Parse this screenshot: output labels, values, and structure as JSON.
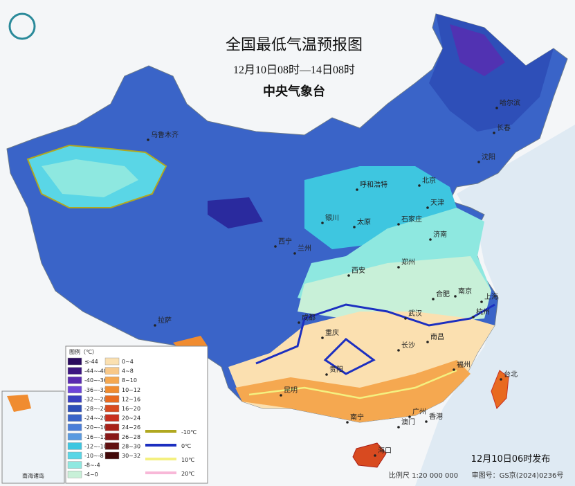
{
  "header": {
    "title": "全国最低气温预报图",
    "subtitle": "12月10日08时—14日08时",
    "agency": "中央气象台"
  },
  "cities": [
    "乌鲁木齐",
    "哈尔滨",
    "长春",
    "沈阳",
    "呼和浩特",
    "北京",
    "天津",
    "银川",
    "太原",
    "石家庄",
    "西宁",
    "兰州",
    "济南",
    "西安",
    "郑州",
    "合肥",
    "南京",
    "上海",
    "拉萨",
    "成都",
    "武汉",
    "杭州",
    "重庆",
    "南昌",
    "长沙",
    "贵阳",
    "福州",
    "台北",
    "昆明",
    "广州",
    "南宁",
    "澳门",
    "香港",
    "海口"
  ],
  "legend": {
    "title": "图例（℃）",
    "items": [
      {
        "label": "≤-44",
        "color": "#2a0a5e"
      },
      {
        "label": "-44~-40",
        "color": "#3d1680"
      },
      {
        "label": "-40~-36",
        "color": "#5a2ab0"
      },
      {
        "label": "-36~-32",
        "color": "#6e44d8"
      },
      {
        "label": "-32~-28",
        "color": "#3a3fc0"
      },
      {
        "label": "-28~-24",
        "color": "#2e4fb8"
      },
      {
        "label": "-24~-20",
        "color": "#3a64c8"
      },
      {
        "label": "-20~-16",
        "color": "#4a7ed8"
      },
      {
        "label": "-16~-12",
        "color": "#5a9ae0"
      },
      {
        "label": "-12~-10",
        "color": "#3ec6e0"
      },
      {
        "label": "-10~-8",
        "color": "#5ad6e6"
      },
      {
        "label": "-8~-4",
        "color": "#8ee8e0"
      },
      {
        "label": "-4~0",
        "color": "#c8f0d8"
      },
      {
        "label": "0~4",
        "color": "#fbe0b0"
      },
      {
        "label": "4~8",
        "color": "#f8c888"
      },
      {
        "label": "8~10",
        "color": "#f5a850"
      },
      {
        "label": "10~12",
        "color": "#f08c30"
      },
      {
        "label": "12~16",
        "color": "#e86a20"
      },
      {
        "label": "16~20",
        "color": "#d84a20"
      },
      {
        "label": "20~24",
        "color": "#c83020"
      },
      {
        "label": "24~26",
        "color": "#a82018"
      },
      {
        "label": "26~28",
        "color": "#881818"
      },
      {
        "label": "28~30",
        "color": "#601010"
      },
      {
        "label": "30~32",
        "color": "#400808"
      }
    ],
    "lines": [
      {
        "label": "-10℃",
        "color": "#b0a820"
      },
      {
        "label": "0℃",
        "color": "#1c2fc0"
      },
      {
        "label": "10℃",
        "color": "#f4f080"
      },
      {
        "label": "20℃",
        "color": "#f8b8d8"
      }
    ]
  },
  "inset": "南海诸岛",
  "footer": {
    "release": "12月10日06时发布",
    "scale": "比例尺 1:20 000 000",
    "map_number": "审图号：GS京(2024)0236号"
  }
}
